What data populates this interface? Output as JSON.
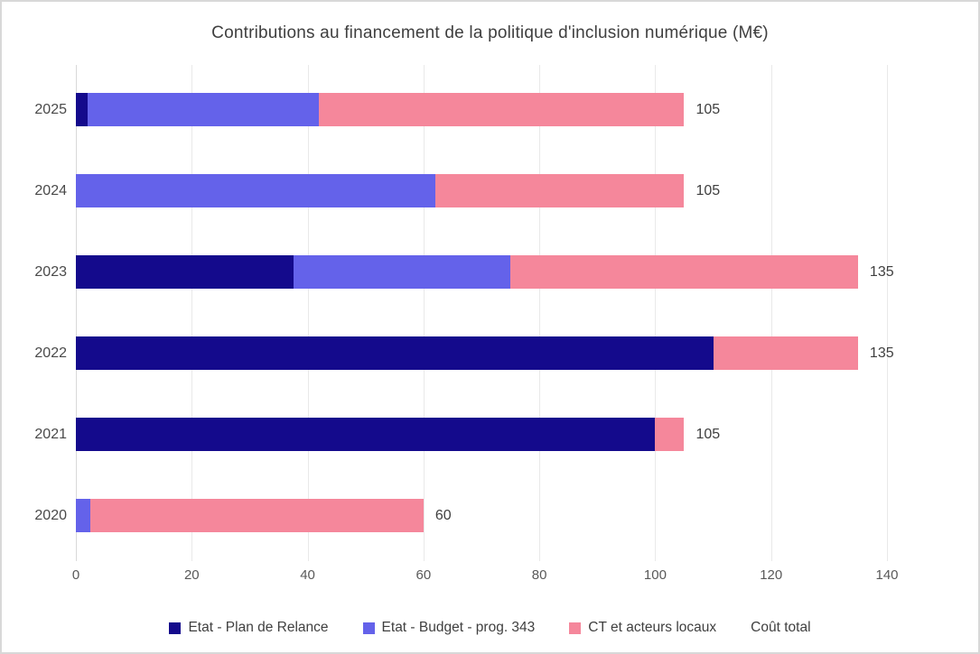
{
  "title": "Contributions au financement de la politique d'inclusion numérique (M€)",
  "chart_data": {
    "type": "bar",
    "orientation": "horizontal",
    "stacked": true,
    "title": "Contributions au financement de la politique d'inclusion numérique (M€)",
    "categories": [
      "2025",
      "2024",
      "2023",
      "2022",
      "2021",
      "2020"
    ],
    "series": [
      {
        "name": "Etat - Plan de Relance",
        "color": "#140a8c",
        "values": [
          2,
          0,
          37.5,
          110,
          100,
          0
        ]
      },
      {
        "name": "Etat - Budget - prog. 343",
        "color": "#6462ea",
        "values": [
          40,
          62,
          37.5,
          0,
          0,
          2.5
        ]
      },
      {
        "name": "CT et acteurs locaux",
        "color": "#f5879b",
        "values": [
          63,
          43,
          60,
          25,
          5,
          57.5
        ]
      }
    ],
    "totals": [
      105,
      105,
      135,
      135,
      105,
      60
    ],
    "total_label": "Coût total",
    "x_ticks": [
      0,
      20,
      40,
      60,
      80,
      100,
      120,
      140
    ],
    "xlim": [
      0,
      140
    ],
    "grid": true,
    "legend_position": "bottom"
  },
  "style_colors": {
    "grid": "#e9e9e9",
    "axis": "#d9d9d9",
    "title_text": "#3f3f3f",
    "tick_text": "#595959",
    "frame_border": "#d8d8d8"
  }
}
